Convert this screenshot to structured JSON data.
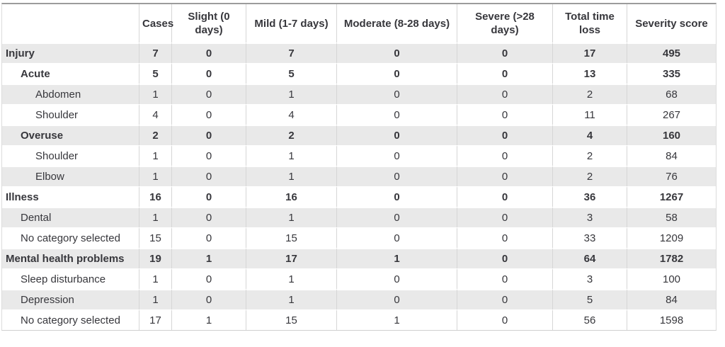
{
  "table": {
    "corner_label": "",
    "columns": [
      "Cases",
      "Slight (0 days)",
      "Mild (1-7 days)",
      "Moderate (8-28 days)",
      "Severe (>28 days)",
      "Total time loss",
      "Severity score"
    ],
    "rows": [
      {
        "label": "Injury",
        "level": 0,
        "bold": true,
        "values": [
          "7",
          "0",
          "7",
          "0",
          "0",
          "17",
          "495"
        ]
      },
      {
        "label": "Acute",
        "level": 1,
        "bold": true,
        "values": [
          "5",
          "0",
          "5",
          "0",
          "0",
          "13",
          "335"
        ]
      },
      {
        "label": "Abdomen",
        "level": 2,
        "bold": false,
        "values": [
          "1",
          "0",
          "1",
          "0",
          "0",
          "2",
          "68"
        ]
      },
      {
        "label": "Shoulder",
        "level": 2,
        "bold": false,
        "values": [
          "4",
          "0",
          "4",
          "0",
          "0",
          "11",
          "267"
        ]
      },
      {
        "label": "Overuse",
        "level": 1,
        "bold": true,
        "values": [
          "2",
          "0",
          "2",
          "0",
          "0",
          "4",
          "160"
        ]
      },
      {
        "label": "Shoulder",
        "level": 2,
        "bold": false,
        "values": [
          "1",
          "0",
          "1",
          "0",
          "0",
          "2",
          "84"
        ]
      },
      {
        "label": "Elbow",
        "level": 2,
        "bold": false,
        "values": [
          "1",
          "0",
          "1",
          "0",
          "0",
          "2",
          "76"
        ]
      },
      {
        "label": "Illness",
        "level": 0,
        "bold": true,
        "values": [
          "16",
          "0",
          "16",
          "0",
          "0",
          "36",
          "1267"
        ]
      },
      {
        "label": "Dental",
        "level": 1,
        "bold": false,
        "values": [
          "1",
          "0",
          "1",
          "0",
          "0",
          "3",
          "58"
        ]
      },
      {
        "label": "No category selected",
        "level": 1,
        "bold": false,
        "values": [
          "15",
          "0",
          "15",
          "0",
          "0",
          "33",
          "1209"
        ]
      },
      {
        "label": "Mental health problems",
        "level": 0,
        "bold": true,
        "values": [
          "19",
          "1",
          "17",
          "1",
          "0",
          "64",
          "1782"
        ]
      },
      {
        "label": "Sleep disturbance",
        "level": 1,
        "bold": false,
        "values": [
          "1",
          "0",
          "1",
          "0",
          "0",
          "3",
          "100"
        ]
      },
      {
        "label": "Depression",
        "level": 1,
        "bold": false,
        "values": [
          "1",
          "0",
          "1",
          "0",
          "0",
          "5",
          "84"
        ]
      },
      {
        "label": "No category selected",
        "level": 1,
        "bold": false,
        "values": [
          "17",
          "1",
          "15",
          "1",
          "0",
          "56",
          "1598"
        ]
      }
    ],
    "colors": {
      "stripe": "#e9e9e9",
      "text": "#37373c",
      "column_border": "#d6d6d6",
      "top_border": "#9c9c9c",
      "bottom_border": "#cfcfcf"
    }
  }
}
